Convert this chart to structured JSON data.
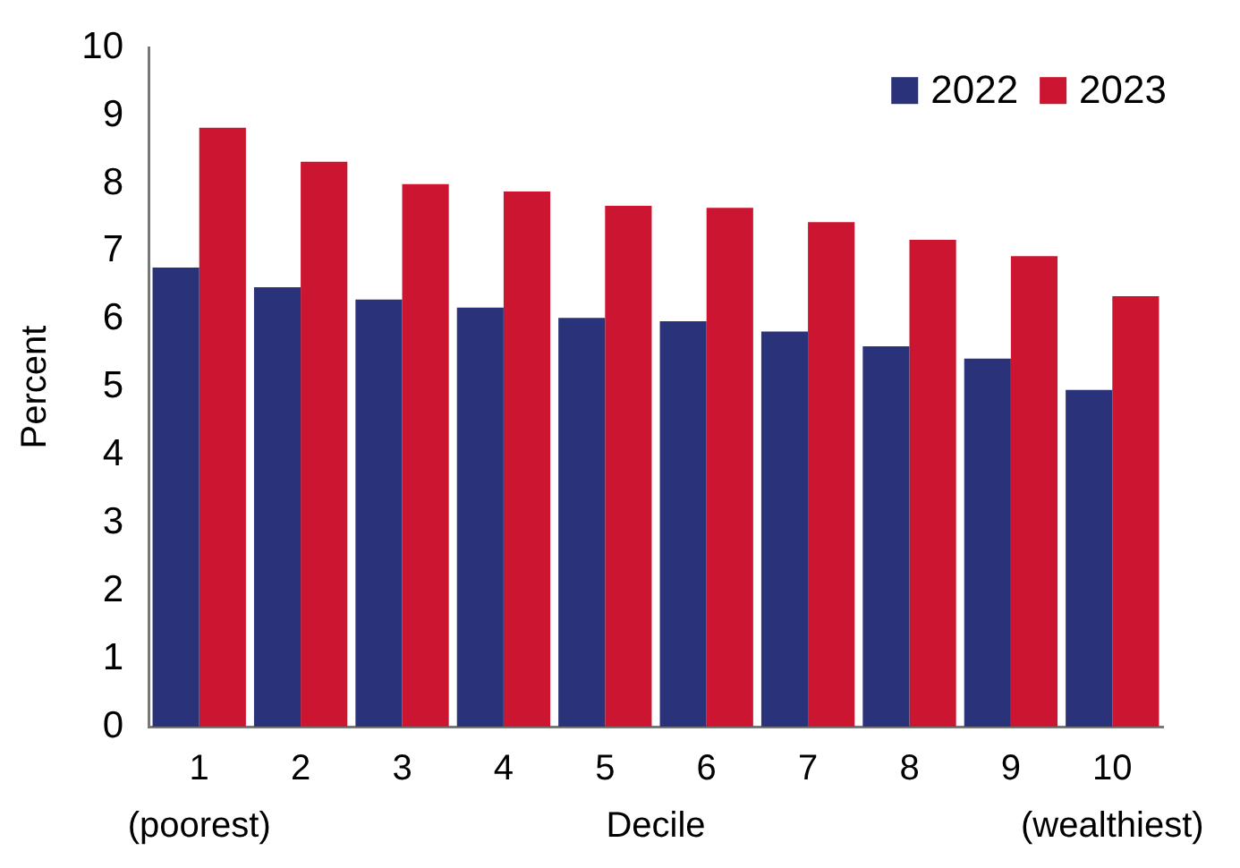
{
  "chart_data": {
    "type": "bar",
    "categories": [
      "1\n(poorest)",
      "2",
      "3",
      "4",
      "5",
      "6",
      "7",
      "8",
      "9",
      "10\n(wealthiest)"
    ],
    "xlabel": "Decile",
    "ylabel": "Percent",
    "series": [
      {
        "name": "2022",
        "color": "#2a327a",
        "values": [
          6.76,
          6.47,
          6.29,
          6.17,
          6.02,
          5.97,
          5.82,
          5.6,
          5.42,
          4.96
        ]
      },
      {
        "name": "2023",
        "color": "#cc1530",
        "values": [
          8.82,
          8.32,
          7.99,
          7.88,
          7.67,
          7.64,
          7.43,
          7.17,
          6.93,
          6.34
        ]
      }
    ],
    "ylim": [
      0,
      10
    ],
    "yticks": [
      0,
      1,
      2,
      3,
      4,
      5,
      6,
      7,
      8,
      9,
      10
    ],
    "grid": false,
    "legend": "top right"
  }
}
